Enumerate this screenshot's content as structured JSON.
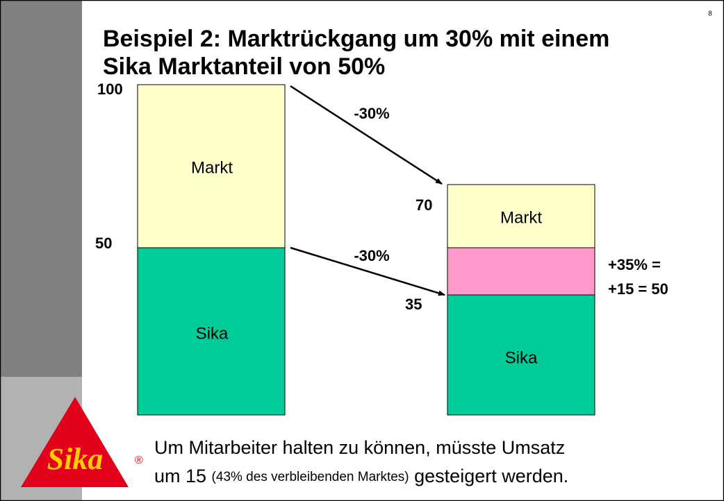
{
  "page_number": "8",
  "title": {
    "line1": "Beispiel 2: Marktrückgang um 30% mit einem",
    "line2": "Sika Marktanteil von 50%"
  },
  "left_bar": {
    "top_label": "100",
    "mid_label": "50",
    "upper_segment": "Markt",
    "lower_segment": "Sika"
  },
  "right_bar": {
    "top_label": "70",
    "mid_label": "35",
    "upper_segment": "Markt",
    "lower_segment": "Sika"
  },
  "arrows": {
    "upper": "-30%",
    "lower": "-30%"
  },
  "gap_note": {
    "line1": "+35% =",
    "line2": "+15 = 50"
  },
  "footer": {
    "line1": "Um Mitarbeiter halten zu können, müsste Umsatz",
    "line2_start": "um 15 ",
    "line2_small": "(43% des verbleibenden Marktes)",
    "line2_end": " gesteigert werden."
  },
  "logo": {
    "text": "Sika",
    "mark": "®"
  }
}
